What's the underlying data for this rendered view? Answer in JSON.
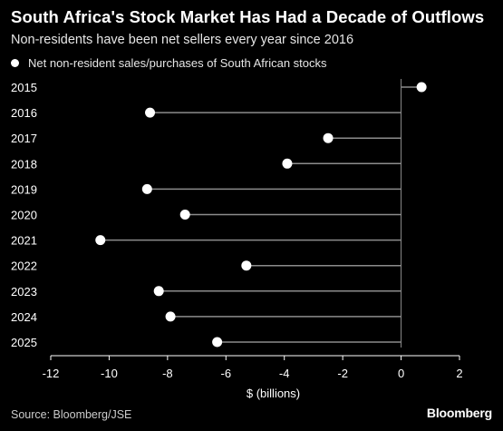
{
  "header": {
    "title": "South Africa's Stock Market Has Had a Decade of Outflows",
    "subtitle": "Non-residents have been net sellers every year since 2016"
  },
  "legend": {
    "label": "Net non-resident sales/purchases of South African stocks"
  },
  "footer": {
    "source": "Source: Bloomberg/JSE",
    "brand": "Bloomberg"
  },
  "colors": {
    "background": "#000000",
    "marker": "#ffffff",
    "stem": "#8c8c8c",
    "text": "#ffffff"
  },
  "chart_data": {
    "type": "scatter",
    "title": "South Africa's Stock Market Has Had a Decade of Outflows",
    "subtitle": "Non-residents have been net sellers every year since 2016",
    "xlabel": "$ (billions)",
    "ylabel": "",
    "xlim": [
      -12,
      2
    ],
    "xticks": [
      -12,
      -10,
      -8,
      -6,
      -4,
      -2,
      0,
      2
    ],
    "grid": false,
    "legend_position": "top-left",
    "categories": [
      "2015",
      "2016",
      "2017",
      "2018",
      "2019",
      "2020",
      "2021",
      "2022",
      "2023",
      "2024",
      "2025"
    ],
    "series": [
      {
        "name": "Net non-resident sales/purchases of South African stocks",
        "values": [
          0.7,
          -8.6,
          -2.5,
          -3.9,
          -8.7,
          -7.4,
          -10.3,
          -5.3,
          -8.3,
          -7.9,
          -6.3
        ]
      }
    ]
  }
}
